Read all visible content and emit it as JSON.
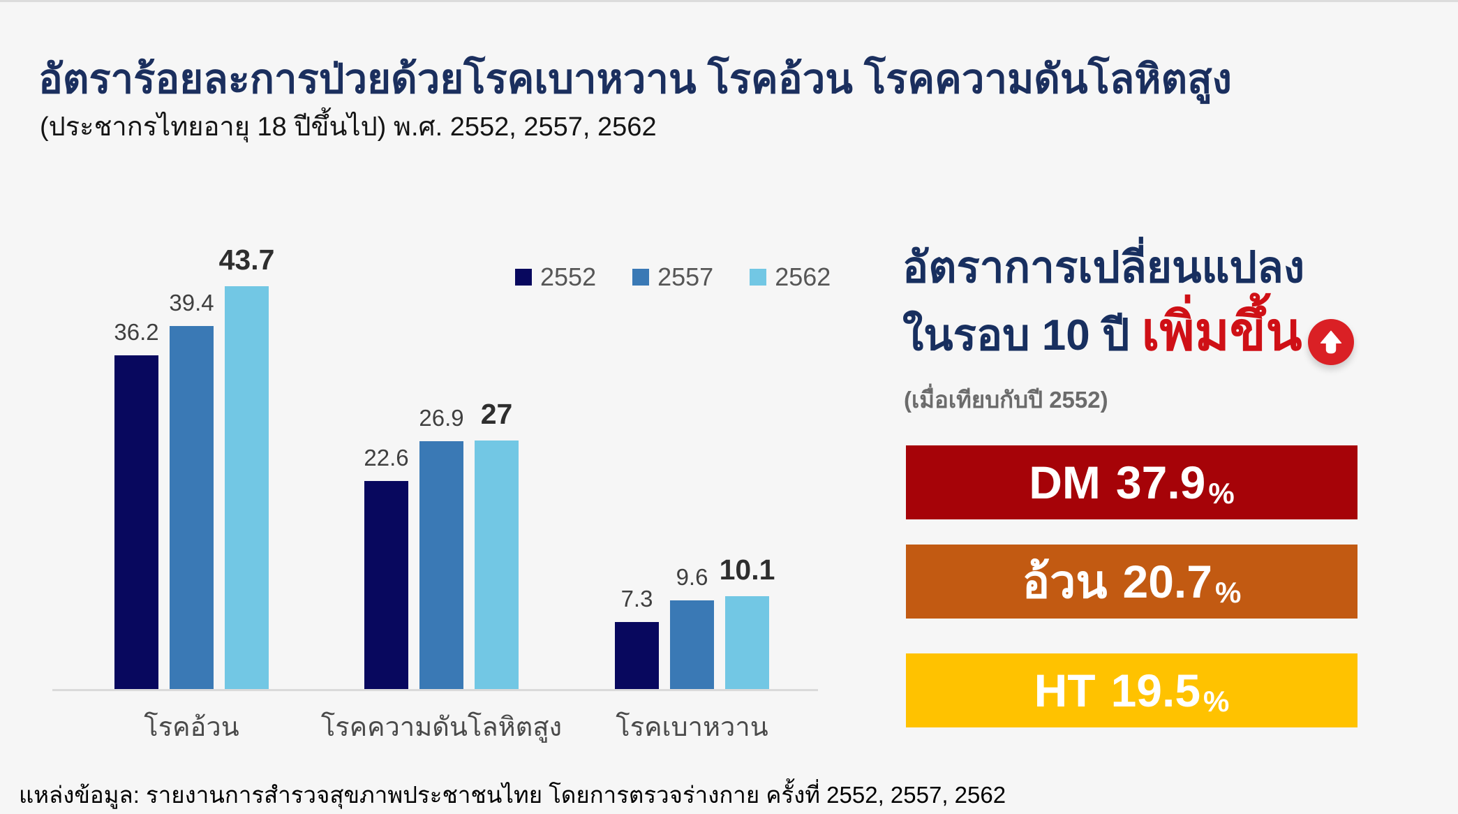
{
  "page": {
    "background": "#f6f6f6",
    "title": "อัตราร้อยละการป่วยด้วยโรคเบาหวาน โรคอ้วน โรคความดันโลหิตสูง",
    "subtitle": "(ประชากรไทยอายุ 18 ปีขึ้นไป) พ.ศ. 2552, 2557, 2562",
    "source": "แหล่งข้อมูล: รายงานการสำรวจสุขภาพประชาชนไทย โดยการตรวจร่างกาย ครั้งที่ 2552, 2557, 2562",
    "title_color": "#1b2f5e"
  },
  "chart_data": {
    "type": "bar",
    "title": "",
    "xlabel": "",
    "ylabel": "",
    "grid": false,
    "legend_position": "top-right",
    "ylim": [
      0,
      45
    ],
    "categories": [
      "โรคอ้วน",
      "โรคความดันโลหิตสูง",
      "โรคเบาหวาน"
    ],
    "series": [
      {
        "name": "2552",
        "color": "#08085e",
        "values": [
          36.2,
          22.6,
          7.3
        ]
      },
      {
        "name": "2557",
        "color": "#3a79b5",
        "values": [
          39.4,
          26.9,
          9.6
        ]
      },
      {
        "name": "2562",
        "color": "#72c7e4",
        "values": [
          43.7,
          27,
          10.1
        ]
      }
    ],
    "value_labels": [
      [
        "36.2",
        "39.4",
        "43.7"
      ],
      [
        "22.6",
        "26.9",
        "27"
      ],
      [
        "7.3",
        "9.6",
        "10.1"
      ]
    ],
    "emphasized_series": "2562"
  },
  "panel": {
    "heading_line1": "อัตราการเปลี่ยนแปลง",
    "heading_line2_prefix": "ในรอบ 10 ปี ",
    "heading_line2_highlight": "เพิ่มขึ้น",
    "highlight_color": "#cf1016",
    "arrow_circle_color": "#da2025",
    "note": "(เมื่อเทียบกับปี 2552)",
    "boxes": [
      {
        "label": "DM",
        "value": "37.9",
        "unit": "%",
        "color": "#a60308"
      },
      {
        "label": "อ้วน",
        "value": "20.7",
        "unit": "%",
        "color": "#c25a12"
      },
      {
        "label": "HT",
        "value": "19.5",
        "unit": "%",
        "color": "#ffc200"
      }
    ]
  }
}
